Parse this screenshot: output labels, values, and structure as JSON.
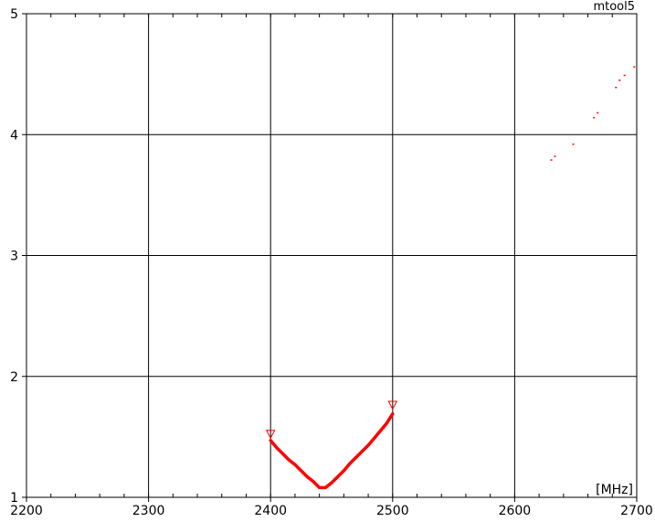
{
  "chart_data": {
    "type": "line",
    "title": "",
    "tool_label": "mtool5",
    "xlabel": "",
    "ylabel": "",
    "x_unit": "[MHz]",
    "xlim": [
      2200,
      2700
    ],
    "ylim": [
      1,
      5
    ],
    "x_ticks": [
      2200,
      2300,
      2400,
      2500,
      2600,
      2700
    ],
    "y_ticks": [
      1,
      2,
      3,
      4,
      5
    ],
    "grid": true,
    "legend": "none",
    "colors": {
      "series": "#ff0000",
      "grid": "#000000",
      "axis": "#000000"
    },
    "series": [
      {
        "x": [
          2400,
          2405,
          2410,
          2415,
          2420,
          2425,
          2430,
          2435,
          2440,
          2445,
          2450,
          2455,
          2460,
          2465,
          2470,
          2475,
          2480,
          2485,
          2490,
          2495,
          2500
        ],
        "y": [
          1.47,
          1.41,
          1.36,
          1.31,
          1.27,
          1.22,
          1.17,
          1.13,
          1.08,
          1.08,
          1.12,
          1.17,
          1.22,
          1.28,
          1.33,
          1.38,
          1.43,
          1.49,
          1.55,
          1.61,
          1.69
        ]
      },
      {
        "style": "dots",
        "x": [
          2630,
          2633,
          2648,
          2665,
          2668,
          2683,
          2686,
          2690,
          2698
        ],
        "y": [
          3.79,
          3.82,
          3.92,
          4.14,
          4.18,
          4.39,
          4.45,
          4.49,
          4.56
        ]
      }
    ],
    "markers": [
      {
        "x": 2400,
        "y": 1.52,
        "shape": "triangle-down"
      },
      {
        "x": 2500,
        "y": 1.76,
        "shape": "triangle-down"
      }
    ]
  }
}
